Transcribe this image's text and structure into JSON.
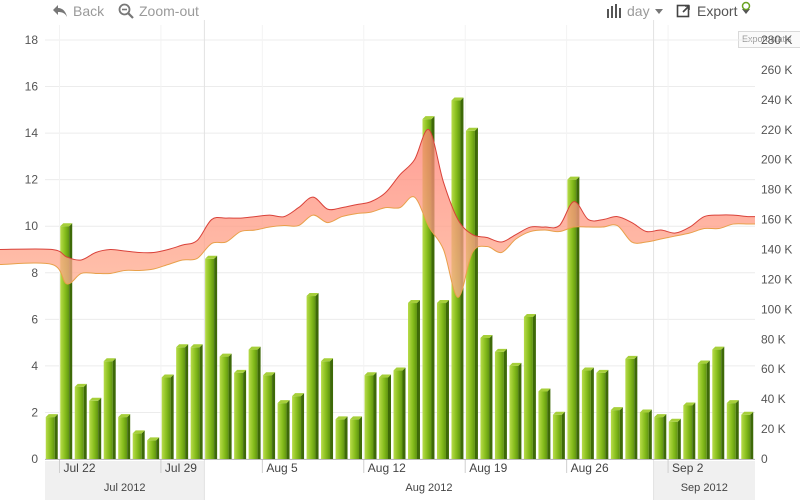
{
  "toolbar": {
    "back_label": "Back",
    "zoom_out_label": "Zoom-out",
    "range_label": "day",
    "export_label": "Export",
    "export_tooltip": "Export statis"
  },
  "chart_data": {
    "type": "bar",
    "grid": true,
    "ylim_left": [
      0,
      18
    ],
    "ylim_right": [
      0,
      280000
    ],
    "y_ticks_left": [
      "0",
      "2",
      "4",
      "6",
      "8",
      "10",
      "12",
      "14",
      "16",
      "18"
    ],
    "y_ticks_right": [
      "0",
      "20 K",
      "40 K",
      "60 K",
      "80 K",
      "100 K",
      "120 K",
      "140 K",
      "160 K",
      "180 K",
      "200 K",
      "220 K",
      "240 K",
      "260 K",
      "280 K"
    ],
    "x_tick_labels": [
      "Jul 22",
      "Jul 29",
      "Aug 5",
      "Aug 12",
      "Aug 19",
      "Aug 26",
      "Sep 2"
    ],
    "month_labels": [
      "Jul 2012",
      "Aug 2012",
      "Sep 2012"
    ],
    "dates": [
      "2012-07-21",
      "2012-07-22",
      "2012-07-23",
      "2012-07-24",
      "2012-07-25",
      "2012-07-26",
      "2012-07-27",
      "2012-07-28",
      "2012-07-29",
      "2012-07-30",
      "2012-07-31",
      "2012-08-01",
      "2012-08-02",
      "2012-08-03",
      "2012-08-04",
      "2012-08-05",
      "2012-08-06",
      "2012-08-07",
      "2012-08-08",
      "2012-08-09",
      "2012-08-10",
      "2012-08-11",
      "2012-08-12",
      "2012-08-13",
      "2012-08-14",
      "2012-08-15",
      "2012-08-16",
      "2012-08-17",
      "2012-08-18",
      "2012-08-19",
      "2012-08-20",
      "2012-08-21",
      "2012-08-22",
      "2012-08-23",
      "2012-08-24",
      "2012-08-25",
      "2012-08-26",
      "2012-08-27",
      "2012-08-28",
      "2012-08-29",
      "2012-08-30",
      "2012-08-31",
      "2012-09-01",
      "2012-09-02",
      "2012-09-03",
      "2012-09-04",
      "2012-09-05",
      "2012-09-06",
      "2012-09-07"
    ],
    "bar_values": [
      1.8,
      10.0,
      3.1,
      2.5,
      4.2,
      1.8,
      1.1,
      0.8,
      3.5,
      4.8,
      4.8,
      8.6,
      4.4,
      3.7,
      4.7,
      3.6,
      2.4,
      2.7,
      7.0,
      4.2,
      1.7,
      1.7,
      3.6,
      3.5,
      3.8,
      6.7,
      14.6,
      6.7,
      15.4,
      14.1,
      5.2,
      4.6,
      4.0,
      6.1,
      2.9,
      1.9,
      12.0,
      3.8,
      3.7,
      2.1,
      4.3,
      2.0,
      1.8,
      1.6,
      2.3,
      4.1,
      4.7,
      2.4,
      1.9
    ],
    "band_upper": [
      140000,
      135000,
      133000,
      138000,
      140000,
      139000,
      138000,
      138000,
      140000,
      143000,
      146000,
      160000,
      161000,
      161000,
      162000,
      163000,
      162000,
      168000,
      175000,
      167000,
      168000,
      170000,
      172000,
      178000,
      190000,
      200000,
      220000,
      185000,
      160000,
      150000,
      148000,
      145000,
      150000,
      155000,
      155000,
      156000,
      172000,
      160000,
      160000,
      162000,
      158000,
      152000,
      153000,
      151000,
      155000,
      162000,
      163000,
      163000,
      162000
    ],
    "band_lower": [
      130000,
      117000,
      124000,
      124000,
      124000,
      126000,
      126000,
      127000,
      130000,
      133000,
      134000,
      144000,
      145000,
      152000,
      153000,
      155000,
      156000,
      156000,
      163000,
      158000,
      162000,
      164000,
      165000,
      168000,
      168000,
      175000,
      155000,
      140000,
      108000,
      138000,
      142000,
      138000,
      147000,
      152000,
      153000,
      152000,
      155000,
      155000,
      155000,
      156000,
      145000,
      145000,
      147000,
      149000,
      151000,
      154000,
      154000,
      157000,
      157000
    ]
  }
}
